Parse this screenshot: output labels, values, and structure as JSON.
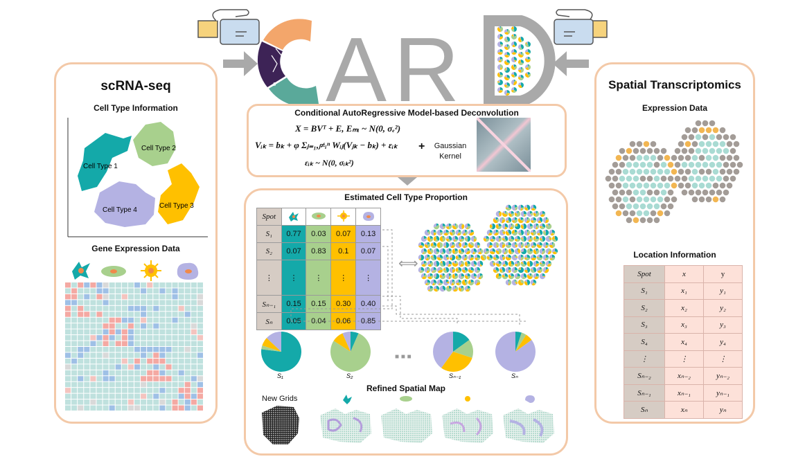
{
  "header": {
    "title_letters": [
      "C",
      "A",
      "R",
      "D"
    ]
  },
  "left_panel": {
    "title": "scRNA-seq",
    "cell_type_heading": "Cell Type Information",
    "cell_types": [
      "Cell Type 1",
      "Cell Type 2",
      "Cell Type 3",
      "Cell Type 4"
    ],
    "gene_heading": "Gene Expression Data"
  },
  "model": {
    "title": "Conditional AutoRegressive Model-based Deconvolution",
    "eq1": "X = BVᵀ + E, Eₘᵢ ~ N(0, σₑ²)",
    "eq2": "Vᵢₖ = bₖ + φ Σⱼ₌₁,ⱼ≠ᵢⁿ Wᵢⱼ(Vⱼₖ − bₖ) + εᵢₖ",
    "eq3": "εᵢₖ ~ N(0, σᵢₖ²)",
    "plus": "+",
    "kernel_label": "Gaussian Kernel"
  },
  "proportion": {
    "title": "Estimated Cell Type Proportion",
    "header_label": "Spot",
    "rows": [
      {
        "spot": "S₁",
        "values": [
          "0.77",
          "0.03",
          "0.07",
          "0.13"
        ]
      },
      {
        "spot": "S₂",
        "values": [
          "0.07",
          "0.83",
          "0.1",
          "0.07"
        ]
      },
      {
        "spot": "⋮",
        "values": [
          "⋮",
          "⋮",
          "⋮",
          "⋮"
        ]
      },
      {
        "spot": "Sₙ₋₁",
        "values": [
          "0.15",
          "0.15",
          "0.30",
          "0.40"
        ]
      },
      {
        "spot": "Sₙ",
        "values": [
          "0.05",
          "0.04",
          "0.06",
          "0.85"
        ]
      }
    ],
    "equiv_symbol": "⟺",
    "pie_labels": [
      "S₁",
      "S₂",
      "Sₙ₋₁",
      "Sₙ"
    ],
    "pie_values": [
      [
        0.77,
        0.03,
        0.07,
        0.13
      ],
      [
        0.07,
        0.83,
        0.1,
        0.07
      ],
      [
        0.15,
        0.15,
        0.3,
        0.4
      ],
      [
        0.05,
        0.04,
        0.06,
        0.85
      ]
    ],
    "ellipsis": "■ ■ ■",
    "refined_title": "Refined Spatial Map",
    "new_grids_label": "New Grids"
  },
  "right_panel": {
    "title": "Spatial Transcriptomics",
    "expression_heading": "Expression Data",
    "location_heading": "Location Information",
    "location_header": [
      "Spot",
      "x",
      "y"
    ],
    "location_rows": [
      [
        "S₁",
        "x₁",
        "y₁"
      ],
      [
        "S₂",
        "x₂",
        "y₂"
      ],
      [
        "S₃",
        "x₃",
        "y₃"
      ],
      [
        "S₄",
        "x₄",
        "y₄"
      ],
      [
        "⋮",
        "⋮",
        "⋮"
      ],
      [
        "Sₙ₋₂",
        "xₙ₋₂",
        "yₙ₋₂"
      ],
      [
        "Sₙ₋₁",
        "xₙ₋₁",
        "yₙ₋₁"
      ],
      [
        "Sₙ",
        "xₙ",
        "yₙ"
      ]
    ]
  },
  "colors": {
    "cell_type_1": "#14a9a9",
    "cell_type_2": "#a8d08d",
    "cell_type_3": "#ffc000",
    "cell_type_4": "#b4b2e3",
    "panel_border": "#f3c9a8",
    "logo_purple": "#3d2356",
    "logo_gray": "#a9a9a9"
  }
}
